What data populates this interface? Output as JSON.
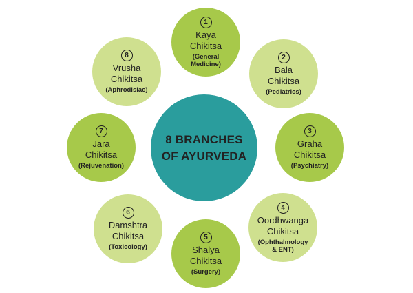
{
  "center": {
    "line1": "8 BRANCHES",
    "line2": "OF AYURVEDA"
  },
  "colors": {
    "center": "#2a9d9d",
    "branch_dark": "#a7c94a",
    "branch_light": "#cfe08f",
    "text": "#222222"
  },
  "branches": [
    {
      "number": "1",
      "name_line1": "Kaya",
      "name_line2": "Chikitsa",
      "desc_line1": "(General",
      "desc_line2": "Medicine)"
    },
    {
      "number": "2",
      "name_line1": "Bala",
      "name_line2": "Chikitsa",
      "desc_line1": "(Pediatrics)",
      "desc_line2": ""
    },
    {
      "number": "3",
      "name_line1": "Graha",
      "name_line2": "Chikitsa",
      "desc_line1": "(Psychiatry)",
      "desc_line2": ""
    },
    {
      "number": "4",
      "name_line1": "Oordhwanga",
      "name_line2": "Chikitsa",
      "desc_line1": "(Ophthalmology",
      "desc_line2": "& ENT)"
    },
    {
      "number": "5",
      "name_line1": "Shalya",
      "name_line2": "Chikitsa",
      "desc_line1": "(Surgery)",
      "desc_line2": ""
    },
    {
      "number": "6",
      "name_line1": "Damshtra",
      "name_line2": "Chikitsa",
      "desc_line1": "(Toxicology)",
      "desc_line2": ""
    },
    {
      "number": "7",
      "name_line1": "Jara",
      "name_line2": "Chikitsa",
      "desc_line1": "(Rejuvenation)",
      "desc_line2": ""
    },
    {
      "number": "8",
      "name_line1": "Vrusha",
      "name_line2": "Chikitsa",
      "desc_line1": "(Aphrodisiac)",
      "desc_line2": ""
    }
  ]
}
